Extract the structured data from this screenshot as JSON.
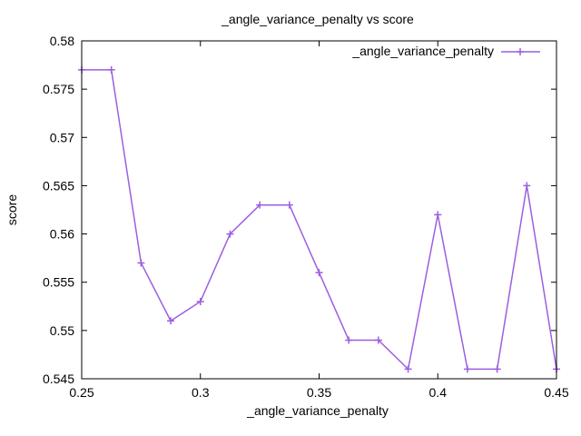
{
  "chart_data": {
    "type": "line",
    "title": "_angle_variance_penalty vs score",
    "xlabel": "_angle_variance_penalty",
    "ylabel": "score",
    "xlim": [
      0.25,
      0.45
    ],
    "ylim": [
      0.545,
      0.58
    ],
    "xticks": [
      "0.25",
      "0.3",
      "0.35",
      "0.4",
      "0.45"
    ],
    "yticks": [
      "0.545",
      "0.55",
      "0.555",
      "0.56",
      "0.565",
      "0.57",
      "0.575",
      "0.58"
    ],
    "grid": false,
    "legend_position": "top-right",
    "series": [
      {
        "name": "_angle_variance_penalty",
        "color": "#9b5fe0",
        "marker": "plus",
        "x": [
          0.25,
          0.2625,
          0.275,
          0.2875,
          0.3,
          0.3125,
          0.325,
          0.3375,
          0.35,
          0.3625,
          0.375,
          0.3875,
          0.4,
          0.4125,
          0.425,
          0.4375,
          0.45
        ],
        "y": [
          0.577,
          0.577,
          0.557,
          0.551,
          0.553,
          0.56,
          0.563,
          0.563,
          0.556,
          0.549,
          0.549,
          0.546,
          0.562,
          0.546,
          0.546,
          0.565,
          0.546
        ]
      }
    ]
  }
}
